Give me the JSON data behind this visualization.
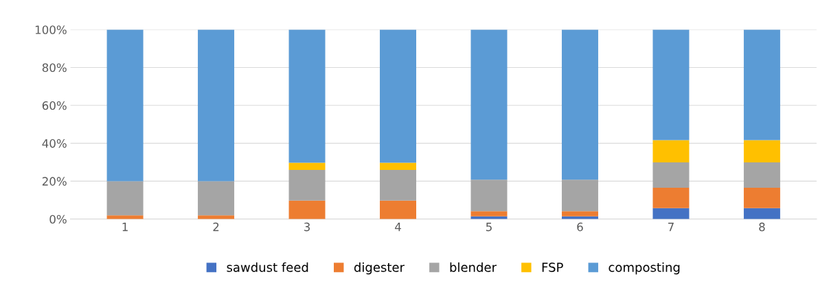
{
  "chart_data": {
    "type": "bar",
    "stacked": true,
    "categories": [
      "1",
      "2",
      "3",
      "4",
      "5",
      "6",
      "7",
      "8"
    ],
    "series": [
      {
        "name": "sawdust feed",
        "color": "#4472c4",
        "values": [
          0,
          0,
          0,
          0,
          1.4,
          1.4,
          5.8,
          5.8
        ]
      },
      {
        "name": "digester",
        "color": "#ed7d31",
        "values": [
          2,
          2,
          9.7,
          9.7,
          2.7,
          2.7,
          10.7,
          10.7
        ]
      },
      {
        "name": "blender",
        "color": "#a5a5a5",
        "values": [
          18,
          18,
          16.2,
          16.2,
          16.7,
          16.7,
          13.4,
          13.4
        ]
      },
      {
        "name": "FSP",
        "color": "#ffc000",
        "values": [
          0,
          0,
          3.8,
          3.8,
          0,
          0,
          11.8,
          11.8
        ]
      },
      {
        "name": "composting",
        "color": "#5b9bd5",
        "values": [
          80,
          80,
          70.3,
          70.3,
          79.2,
          79.2,
          58.3,
          58.3
        ]
      }
    ],
    "ylim": [
      0,
      100
    ],
    "yticks": [
      {
        "value": 0,
        "label": "0%"
      },
      {
        "value": 20,
        "label": "20%"
      },
      {
        "value": 40,
        "label": "40%"
      },
      {
        "value": 60,
        "label": "60%"
      },
      {
        "value": 80,
        "label": "80%"
      },
      {
        "value": 100,
        "label": "100%"
      }
    ],
    "grid": "y",
    "legend": "bottom"
  }
}
